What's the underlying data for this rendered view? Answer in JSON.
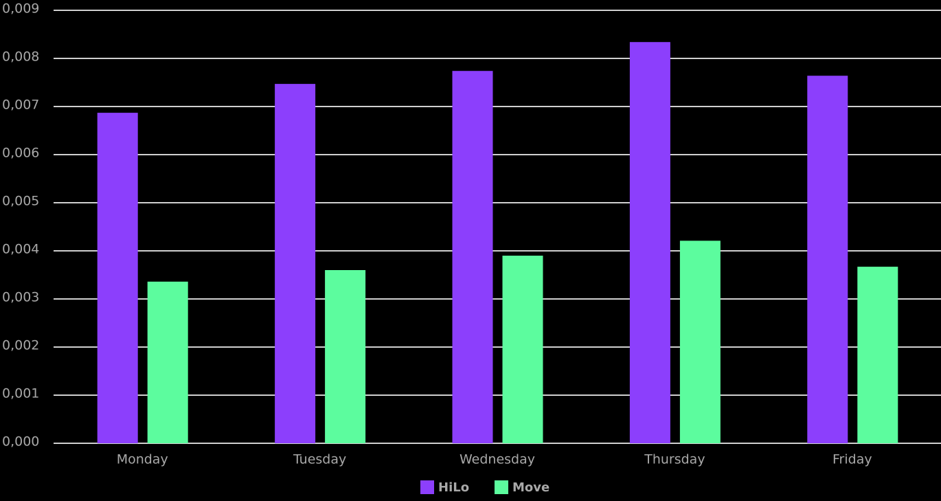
{
  "chart_data": {
    "type": "bar",
    "categories": [
      "Monday",
      "Tuesday",
      "Wednesday",
      "Thursday",
      "Friday"
    ],
    "series": [
      {
        "name": "HiLo",
        "color": "#8c3ffc",
        "values": [
          0.00687,
          0.00747,
          0.00774,
          0.00834,
          0.00764
        ]
      },
      {
        "name": "Move",
        "color": "#5cfc9e",
        "values": [
          0.00336,
          0.0036,
          0.0039,
          0.00421,
          0.00367
        ]
      }
    ],
    "ylim": [
      0,
      0.009
    ],
    "yticks": [
      {
        "value": 0,
        "label": "0,000"
      },
      {
        "value": 0.001,
        "label": "0,001"
      },
      {
        "value": 0.002,
        "label": "0,002"
      },
      {
        "value": 0.003,
        "label": "0,003"
      },
      {
        "value": 0.004,
        "label": "0,004"
      },
      {
        "value": 0.005,
        "label": "0,005"
      },
      {
        "value": 0.006,
        "label": "0,006"
      },
      {
        "value": 0.007,
        "label": "0,007"
      },
      {
        "value": 0.008,
        "label": "0,008"
      },
      {
        "value": 0.009,
        "label": "0,009"
      }
    ],
    "grid": true,
    "legend": "bottom"
  }
}
